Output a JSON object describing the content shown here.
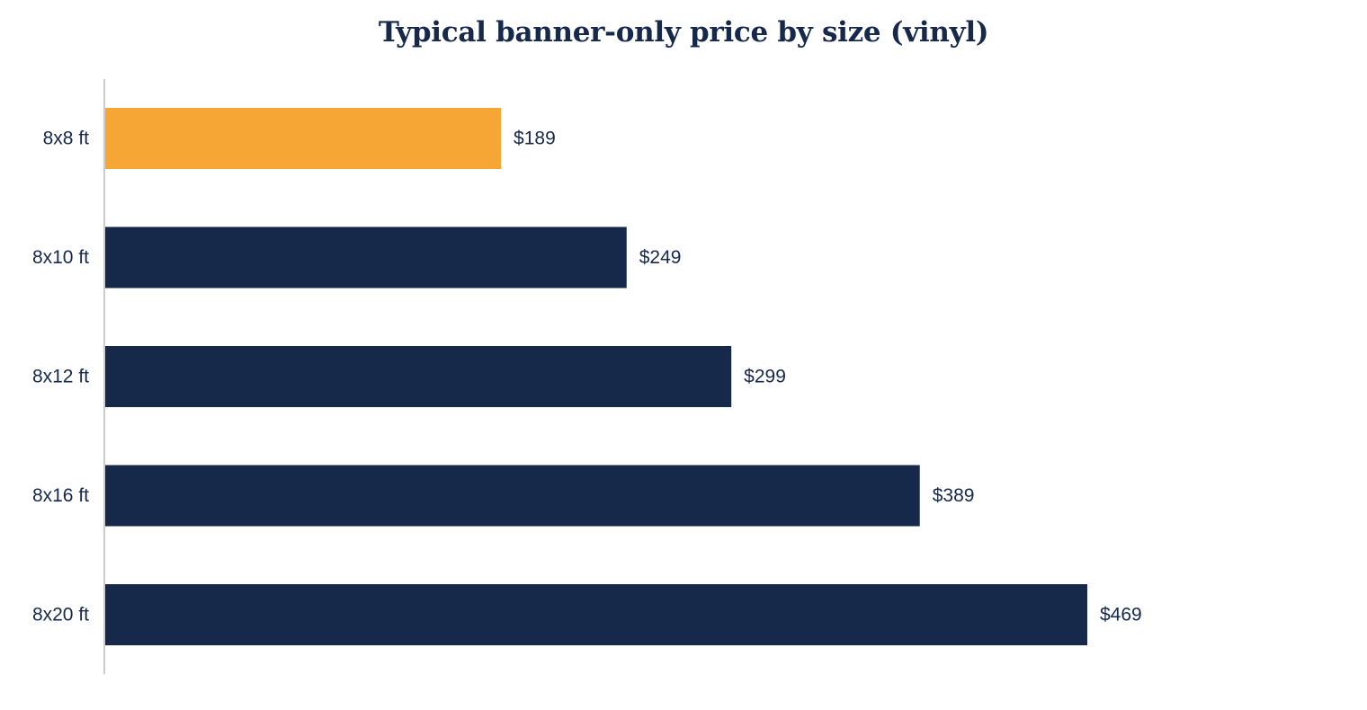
{
  "chart_data": {
    "type": "bar",
    "orientation": "horizontal",
    "title": "Typical banner-only price by size (vinyl)",
    "xlabel": "",
    "ylabel": "",
    "categories": [
      "8x8 ft",
      "8x10 ft",
      "8x12 ft",
      "8x16 ft",
      "8x20 ft"
    ],
    "values": [
      189,
      249,
      299,
      389,
      469
    ],
    "value_labels": [
      "$189",
      "$249",
      "$299",
      "$389",
      "$469"
    ],
    "xlim": [
      0,
      600
    ],
    "grid": false,
    "legend": "none",
    "highlight_index": 0,
    "colors": {
      "highlight": "#f6a634",
      "bar": "#16294a",
      "axis": "#cccccc",
      "text": "#16294a"
    }
  }
}
